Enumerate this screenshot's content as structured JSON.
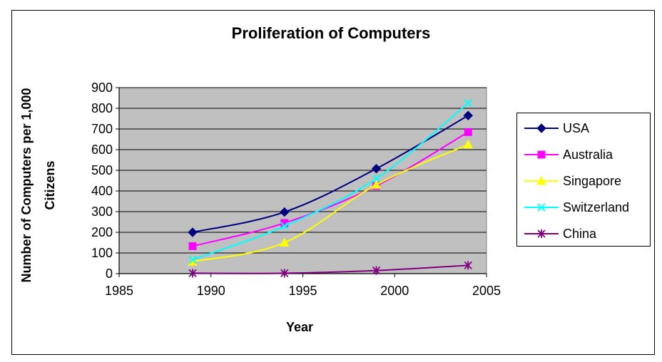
{
  "chart_data": {
    "type": "line",
    "title": "Proliferation of Computers",
    "xlabel": "Year",
    "ylabel": "Number of Computers per 1,000 Citizens",
    "xlim": [
      1985,
      2005
    ],
    "ylim": [
      0,
      900
    ],
    "x_ticks": [
      1985,
      1990,
      1995,
      2000,
      2005
    ],
    "y_ticks": [
      0,
      100,
      200,
      300,
      400,
      500,
      600,
      700,
      800,
      900
    ],
    "grid": "horizontal",
    "plot_background": "#c0c0c0",
    "legend_position": "right",
    "x": [
      1989,
      1994,
      1999,
      2004
    ],
    "series": [
      {
        "name": "USA",
        "values": [
          200,
          298,
          508,
          765
        ],
        "color": "#000080",
        "marker": "diamond"
      },
      {
        "name": "Australia",
        "values": [
          133,
          245,
          425,
          685
        ],
        "color": "#ff00ff",
        "marker": "square"
      },
      {
        "name": "Singapore",
        "values": [
          58,
          150,
          430,
          625
        ],
        "color": "#ffff00",
        "marker": "triangle"
      },
      {
        "name": "Switzerland",
        "values": [
          68,
          230,
          460,
          825
        ],
        "color": "#00ffff",
        "marker": "x"
      },
      {
        "name": "China",
        "values": [
          2,
          2,
          15,
          40
        ],
        "color": "#800080",
        "marker": "asterisk"
      }
    ]
  }
}
